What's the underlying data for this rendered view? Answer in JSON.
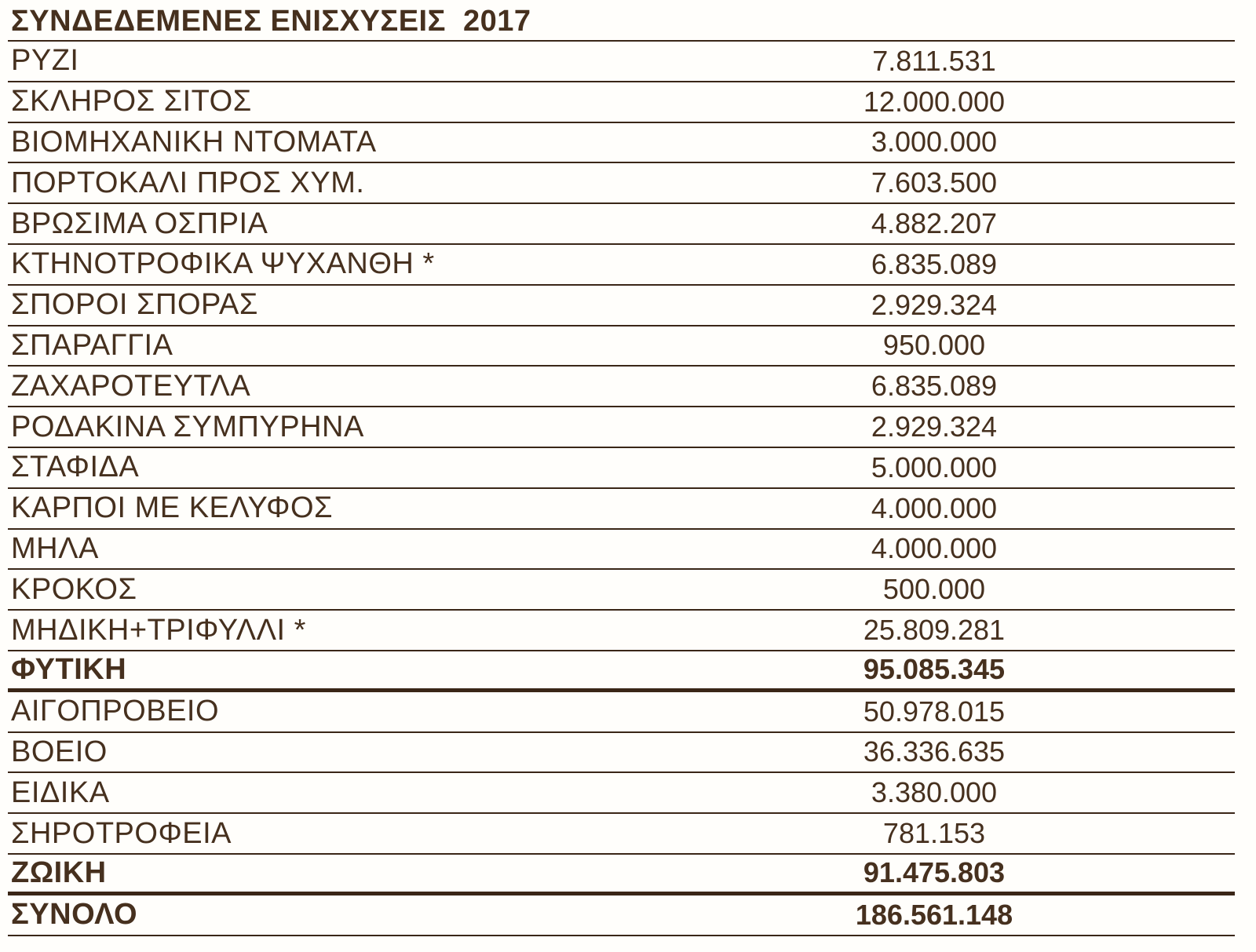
{
  "title": "ΣΥΝΔΕΔΕΜΕΝΕΣ ΕΝΙΣΧΥΣΕΙΣ  2017",
  "colors": {
    "text": "#46301e",
    "line": "#3a2617",
    "background": "#fffefb"
  },
  "table": {
    "rows": [
      {
        "label": "ΡΥΖΙ",
        "value": "7.811.531",
        "bold": false,
        "thick_after": false
      },
      {
        "label": "ΣΚΛΗΡΟΣ ΣΙΤΟΣ",
        "value": "12.000.000",
        "bold": false,
        "thick_after": false
      },
      {
        "label": "ΒΙΟΜΗΧΑΝΙΚΗ ΝΤΟΜΑΤΑ",
        "value": "3.000.000",
        "bold": false,
        "thick_after": false
      },
      {
        "label": "ΠΟΡΤΟΚΑΛΙ ΠΡΟΣ ΧΥΜ.",
        "value": "7.603.500",
        "bold": false,
        "thick_after": false
      },
      {
        "label": "ΒΡΩΣΙΜΑ ΟΣΠΡΙΑ",
        "value": "4.882.207",
        "bold": false,
        "thick_after": false
      },
      {
        "label": "ΚΤΗΝΟΤΡΟΦΙΚΑ ΨΥΧΑΝΘΗ *",
        "value": "6.835.089",
        "bold": false,
        "thick_after": false
      },
      {
        "label": "ΣΠΟΡΟΙ ΣΠΟΡΑΣ",
        "value": "2.929.324",
        "bold": false,
        "thick_after": false
      },
      {
        "label": "ΣΠΑΡΑΓΓΙΑ",
        "value": "950.000",
        "bold": false,
        "thick_after": false
      },
      {
        "label": "ΖΑΧΑΡΟΤΕΥΤΛΑ",
        "value": "6.835.089",
        "bold": false,
        "thick_after": false
      },
      {
        "label": "ΡΟΔΑΚΙΝΑ ΣΥΜΠΥΡΗΝΑ",
        "value": "2.929.324",
        "bold": false,
        "thick_after": false
      },
      {
        "label": "ΣΤΑΦΙΔΑ",
        "value": "5.000.000",
        "bold": false,
        "thick_after": false
      },
      {
        "label": "ΚΑΡΠΟΙ ΜΕ ΚΕΛΥΦΟΣ",
        "value": "4.000.000",
        "bold": false,
        "thick_after": false
      },
      {
        "label": "ΜΗΛΑ",
        "value": "4.000.000",
        "bold": false,
        "thick_after": false
      },
      {
        "label": "ΚΡΟΚΟΣ",
        "value": "500.000",
        "bold": false,
        "thick_after": false
      },
      {
        "label": "ΜΗΔΙΚΗ+ΤΡΙΦΥΛΛΙ *",
        "value": "25.809.281",
        "bold": false,
        "thick_after": false
      },
      {
        "label": "ΦΥΤΙΚΗ",
        "value": "95.085.345",
        "bold": true,
        "thick_after": true
      },
      {
        "label": "ΑΙΓΟΠΡΟΒΕΙΟ",
        "value": "50.978.015",
        "bold": false,
        "thick_after": false
      },
      {
        "label": "ΒΟΕΙΟ",
        "value": "36.336.635",
        "bold": false,
        "thick_after": false
      },
      {
        "label": "ΕΙΔΙΚΑ",
        "value": "3.380.000",
        "bold": false,
        "thick_after": false
      },
      {
        "label": "ΣΗΡΟΤΡΟΦΕΙΑ",
        "value": "781.153",
        "bold": false,
        "thick_after": false
      },
      {
        "label": "ΖΩΙΚΗ",
        "value": "91.475.803",
        "bold": true,
        "thick_after": true
      },
      {
        "label": "ΣΥΝΟΛΟ",
        "value": "186.561.148",
        "bold": true,
        "thick_after": false
      }
    ]
  }
}
